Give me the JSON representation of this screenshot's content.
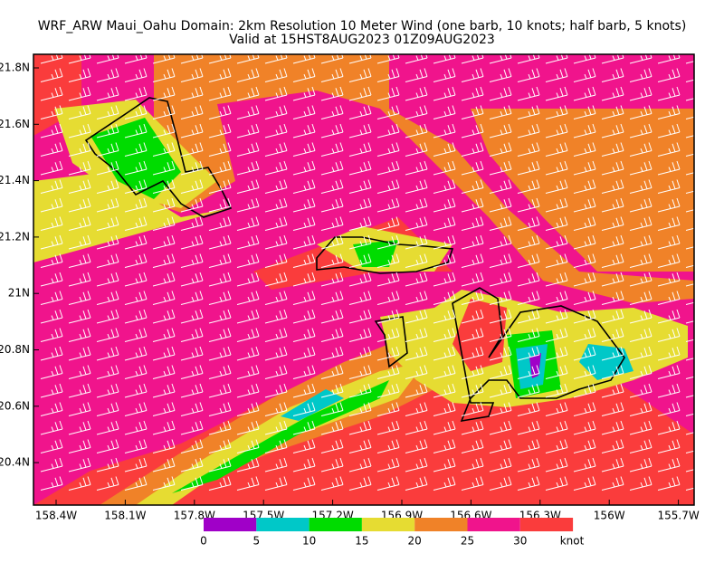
{
  "header": {
    "title": "WRF_ARW Maui_Oahu Domain: 2km Resolution  10 Meter Wind (one barb, 10 knots; half barb, 5 knots)",
    "subtitle": "Valid at 15HST8AUG2023  01Z09AUG2023"
  },
  "map": {
    "lat_labels": [
      "21.8N",
      "21.6N",
      "21.4N",
      "21.2N",
      "21N",
      "20.8N",
      "20.6N",
      "20.4N"
    ],
    "lon_labels": [
      "158.4W",
      "158.1W",
      "157.8W",
      "157.5W",
      "157.2W",
      "156.9W",
      "156.6W",
      "156.3W",
      "156W",
      "155.7W"
    ]
  },
  "colorbar": {
    "labels": [
      "0",
      "5",
      "10",
      "15",
      "20",
      "25",
      "30"
    ],
    "unit": "knot",
    "colors": [
      "#a000c8",
      "#00c8c8",
      "#00dc00",
      "#e6dc32",
      "#f08228",
      "#f0148c",
      "#fa3c3c"
    ]
  }
}
